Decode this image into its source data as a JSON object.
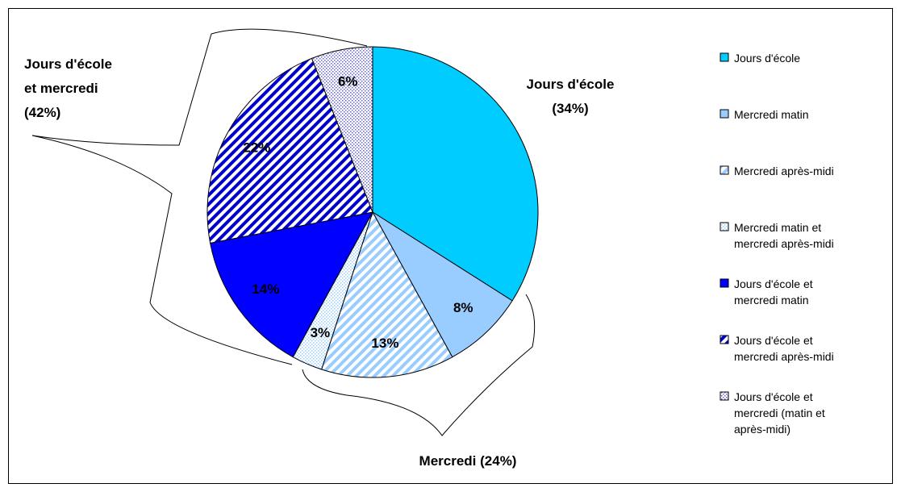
{
  "chart_data": {
    "type": "pie",
    "categories": [
      "Jours d'école",
      "Mercredi matin",
      "Mercredi après-midi",
      "Mercredi matin et mercredi après-midi",
      "Jours d'école et mercredi matin",
      "Jours d'école et mercredi après-midi",
      "Jours d'école et mercredi (matin et après-midi)"
    ],
    "values": [
      34,
      8,
      13,
      3,
      14,
      22,
      6
    ],
    "value_labels": [
      null,
      "8%",
      "13%",
      "3%",
      "14%",
      "22%",
      "6%"
    ],
    "colors": [
      "#00ccff",
      "#99ccff",
      "#99ccff",
      "#99ccff",
      "#0000ff",
      "#0000cc",
      "#6666cc"
    ],
    "patterns": [
      "solid",
      "solid",
      "stripes",
      "dots",
      "solid",
      "stripes",
      "dots"
    ],
    "annotations": [
      "Jours d'école (34%)",
      "Mercredi (24%)",
      "Jours d'école et mercredi (42%)"
    ],
    "legend": "right"
  }
}
